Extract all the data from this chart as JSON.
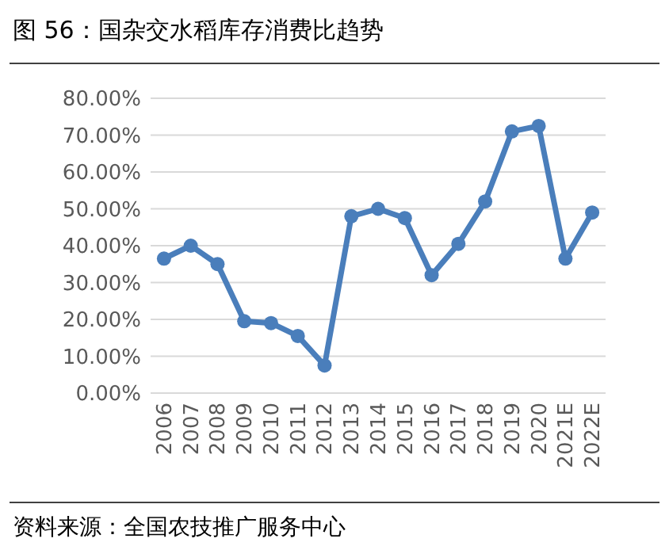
{
  "chart_data": {
    "type": "line",
    "title": "图 56：国杂交水稻库存消费比趋势",
    "annotations": [
      "资料来源：全国农技推广服务中心"
    ],
    "categories": [
      "2006",
      "2007",
      "2008",
      "2009",
      "2010",
      "2011",
      "2012",
      "2013",
      "2014",
      "2015",
      "2016",
      "2017",
      "2018",
      "2019",
      "2020",
      "2021E",
      "2022E"
    ],
    "series": [
      {
        "color": "#4a7ebb",
        "values": [
          36.5,
          40,
          35,
          19.5,
          19,
          15.5,
          7.5,
          48,
          50,
          47.5,
          32,
          40.5,
          52,
          71,
          72.5,
          36.5,
          49
        ]
      }
    ],
    "ylim": [
      0,
      80
    ],
    "yticks": [
      {
        "value": 0,
        "label": "0.00%"
      },
      {
        "value": 10,
        "label": "10.00%"
      },
      {
        "value": 20,
        "label": "20.00%"
      },
      {
        "value": 30,
        "label": "30.00%"
      },
      {
        "value": 40,
        "label": "40.00%"
      },
      {
        "value": 50,
        "label": "50.00%"
      },
      {
        "value": 60,
        "label": "60.00%"
      },
      {
        "value": 70,
        "label": "70.00%"
      },
      {
        "value": 80,
        "label": "80.00%"
      }
    ],
    "grid": "y",
    "marker": "circle",
    "line_style": "solid"
  }
}
